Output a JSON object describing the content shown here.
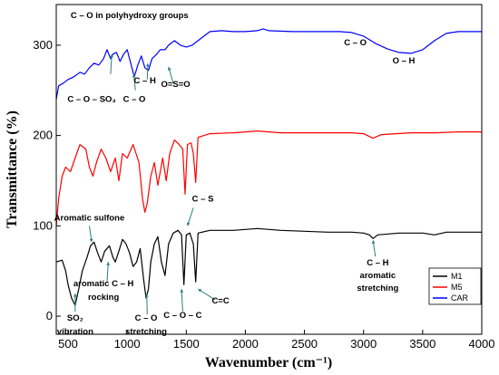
{
  "chart_data": {
    "type": "line",
    "xlabel": "Wavenumber (cm⁻¹)",
    "ylabel": "Transmittance (%)",
    "xlim": [
      400,
      4000
    ],
    "ylim": [
      -20,
      345
    ],
    "x_ticks": [
      500,
      1000,
      1500,
      2000,
      2500,
      3000,
      3500,
      4000
    ],
    "y_ticks": [
      0,
      100,
      200,
      300
    ],
    "grid": false,
    "legend_position": "bottom-right",
    "series": [
      {
        "name": "M1",
        "color": "#000000",
        "points": [
          [
            400,
            60
          ],
          [
            450,
            62
          ],
          [
            480,
            50
          ],
          [
            500,
            35
          ],
          [
            530,
            20
          ],
          [
            560,
            12
          ],
          [
            590,
            30
          ],
          [
            620,
            50
          ],
          [
            660,
            65
          ],
          [
            690,
            78
          ],
          [
            720,
            82
          ],
          [
            750,
            70
          ],
          [
            780,
            60
          ],
          [
            810,
            72
          ],
          [
            850,
            78
          ],
          [
            880,
            65
          ],
          [
            900,
            60
          ],
          [
            930,
            72
          ],
          [
            960,
            85
          ],
          [
            990,
            80
          ],
          [
            1020,
            70
          ],
          [
            1050,
            55
          ],
          [
            1080,
            60
          ],
          [
            1110,
            75
          ],
          [
            1140,
            40
          ],
          [
            1160,
            20
          ],
          [
            1180,
            30
          ],
          [
            1200,
            60
          ],
          [
            1230,
            80
          ],
          [
            1260,
            88
          ],
          [
            1290,
            60
          ],
          [
            1320,
            45
          ],
          [
            1350,
            80
          ],
          [
            1390,
            92
          ],
          [
            1430,
            95
          ],
          [
            1460,
            90
          ],
          [
            1480,
            35
          ],
          [
            1500,
            90
          ],
          [
            1530,
            92
          ],
          [
            1560,
            80
          ],
          [
            1580,
            38
          ],
          [
            1600,
            92
          ],
          [
            1700,
            95
          ],
          [
            1900,
            95
          ],
          [
            2100,
            97
          ],
          [
            2300,
            95
          ],
          [
            2500,
            94
          ],
          [
            2700,
            93
          ],
          [
            2900,
            93
          ],
          [
            3000,
            92
          ],
          [
            3050,
            90
          ],
          [
            3080,
            86
          ],
          [
            3120,
            90
          ],
          [
            3300,
            92
          ],
          [
            3500,
            92
          ],
          [
            3600,
            90
          ],
          [
            3700,
            93
          ],
          [
            3900,
            93
          ],
          [
            4000,
            93
          ]
        ]
      },
      {
        "name": "M5",
        "color": "#ff0000",
        "points": [
          [
            400,
            100
          ],
          [
            420,
            130
          ],
          [
            450,
            155
          ],
          [
            480,
            165
          ],
          [
            520,
            160
          ],
          [
            560,
            175
          ],
          [
            600,
            190
          ],
          [
            650,
            185
          ],
          [
            680,
            165
          ],
          [
            710,
            155
          ],
          [
            740,
            170
          ],
          [
            780,
            185
          ],
          [
            820,
            175
          ],
          [
            860,
            160
          ],
          [
            900,
            175
          ],
          [
            930,
            150
          ],
          [
            960,
            180
          ],
          [
            1000,
            175
          ],
          [
            1050,
            190
          ],
          [
            1100,
            170
          ],
          [
            1130,
            130
          ],
          [
            1150,
            115
          ],
          [
            1170,
            125
          ],
          [
            1200,
            155
          ],
          [
            1230,
            170
          ],
          [
            1260,
            145
          ],
          [
            1300,
            175
          ],
          [
            1330,
            150
          ],
          [
            1360,
            180
          ],
          [
            1400,
            195
          ],
          [
            1440,
            190
          ],
          [
            1470,
            185
          ],
          [
            1490,
            135
          ],
          [
            1510,
            190
          ],
          [
            1540,
            192
          ],
          [
            1560,
            180
          ],
          [
            1580,
            148
          ],
          [
            1600,
            198
          ],
          [
            1700,
            202
          ],
          [
            1900,
            203
          ],
          [
            2100,
            205
          ],
          [
            2300,
            203
          ],
          [
            2500,
            203
          ],
          [
            2700,
            203
          ],
          [
            2900,
            203
          ],
          [
            3000,
            202
          ],
          [
            3080,
            197
          ],
          [
            3150,
            201
          ],
          [
            3400,
            203
          ],
          [
            3600,
            203
          ],
          [
            3800,
            204
          ],
          [
            4000,
            204
          ]
        ]
      },
      {
        "name": "CAR",
        "color": "#0000ff",
        "points": [
          [
            400,
            240
          ],
          [
            420,
            255
          ],
          [
            460,
            258
          ],
          [
            500,
            262
          ],
          [
            550,
            265
          ],
          [
            600,
            270
          ],
          [
            640,
            268
          ],
          [
            680,
            275
          ],
          [
            720,
            280
          ],
          [
            760,
            278
          ],
          [
            800,
            285
          ],
          [
            830,
            295
          ],
          [
            860,
            285
          ],
          [
            880,
            290
          ],
          [
            910,
            292
          ],
          [
            940,
            282
          ],
          [
            970,
            290
          ],
          [
            1000,
            295
          ],
          [
            1030,
            280
          ],
          [
            1060,
            265
          ],
          [
            1090,
            278
          ],
          [
            1120,
            288
          ],
          [
            1150,
            275
          ],
          [
            1180,
            272
          ],
          [
            1210,
            285
          ],
          [
            1250,
            290
          ],
          [
            1280,
            295
          ],
          [
            1320,
            295
          ],
          [
            1350,
            300
          ],
          [
            1400,
            305
          ],
          [
            1450,
            300
          ],
          [
            1500,
            298
          ],
          [
            1550,
            300
          ],
          [
            1600,
            305
          ],
          [
            1650,
            310
          ],
          [
            1700,
            315
          ],
          [
            1800,
            316
          ],
          [
            1900,
            315
          ],
          [
            2000,
            315
          ],
          [
            2100,
            316
          ],
          [
            2150,
            318
          ],
          [
            2200,
            316
          ],
          [
            2400,
            315
          ],
          [
            2600,
            315
          ],
          [
            2800,
            315
          ],
          [
            2900,
            314
          ],
          [
            3000,
            310
          ],
          [
            3100,
            302
          ],
          [
            3200,
            296
          ],
          [
            3300,
            292
          ],
          [
            3400,
            291
          ],
          [
            3500,
            295
          ],
          [
            3600,
            305
          ],
          [
            3700,
            313
          ],
          [
            3800,
            315
          ],
          [
            3900,
            315
          ],
          [
            4000,
            315
          ]
        ]
      }
    ],
    "annotations": [
      {
        "text": "C – O in polyhydroxy groups",
        "x": 1020,
        "y": 330
      },
      {
        "text": "C – O – SO₃",
        "x": 700,
        "y": 237
      },
      {
        "text": "C – O",
        "x": 1060,
        "y": 237
      },
      {
        "text": "C – H",
        "x": 1150,
        "y": 258
      },
      {
        "text": "O=S=O",
        "x": 1410,
        "y": 254
      },
      {
        "text": "C – O",
        "x": 2930,
        "y": 300
      },
      {
        "text": "O – H",
        "x": 3340,
        "y": 280
      },
      {
        "text": "C – S",
        "x": 1640,
        "y": 127
      },
      {
        "text": "Aromatic sulfone",
        "x": 680,
        "y": 106
      },
      {
        "text": "aromatic C – H",
        "x": 800,
        "y": 33
      },
      {
        "text": "rocking",
        "x": 800,
        "y": 18
      },
      {
        "text": "SO₂",
        "x": 560,
        "y": -5
      },
      {
        "text": "vibration",
        "x": 560,
        "y": -20
      },
      {
        "text": "C – O",
        "x": 1160,
        "y": -5
      },
      {
        "text": "stretching",
        "x": 1160,
        "y": -20
      },
      {
        "text": "C – O – C",
        "x": 1470,
        "y": -2
      },
      {
        "text": "C=C",
        "x": 1790,
        "y": 14
      },
      {
        "text": "C – H",
        "x": 3120,
        "y": 56
      },
      {
        "text": "aromatic",
        "x": 3120,
        "y": 42
      },
      {
        "text": "stretching",
        "x": 3120,
        "y": 28
      }
    ]
  }
}
